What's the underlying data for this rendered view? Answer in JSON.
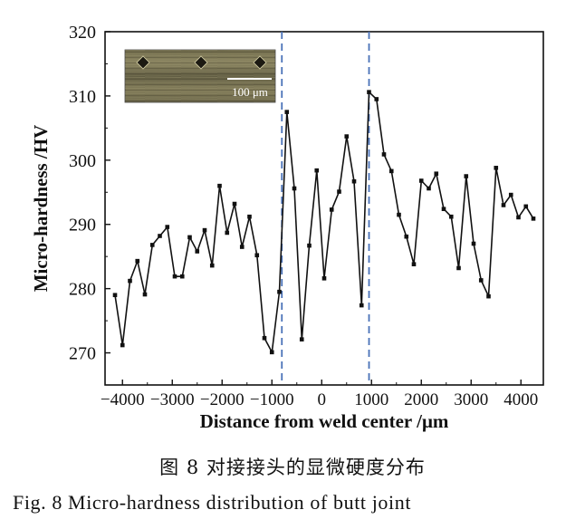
{
  "chart_data": {
    "type": "line",
    "title": "",
    "xlabel": "Distance from weld center /μm",
    "ylabel": "Micro-hardness /HV",
    "xlim": [
      -4350,
      4450
    ],
    "ylim": [
      265,
      320
    ],
    "xticks": [
      -4000,
      -3000,
      -2000,
      -1000,
      0,
      1000,
      2000,
      3000,
      4000
    ],
    "xtick_labels": [
      "−4000",
      "−3000",
      "−2000",
      "−1000",
      "0",
      "1000",
      "2000",
      "3000",
      "4000"
    ],
    "yticks": [
      270,
      280,
      290,
      300,
      310,
      320
    ],
    "ytick_labels": [
      "270",
      "280",
      "290",
      "300",
      "310",
      "320"
    ],
    "grid": false,
    "reference_lines_x": [
      -800,
      950
    ],
    "reference_line_color": "#4a72b8",
    "line_color": "#111111",
    "series": [
      {
        "name": "",
        "x": [
          -4150,
          -4000,
          -3850,
          -3700,
          -3550,
          -3400,
          -3250,
          -3100,
          -2950,
          -2800,
          -2650,
          -2500,
          -2350,
          -2200,
          -2050,
          -1900,
          -1750,
          -1600,
          -1450,
          -1300,
          -1150,
          -1000,
          -850,
          -700,
          -550,
          -400,
          -250,
          -100,
          50,
          200,
          350,
          500,
          650,
          800,
          950,
          1100,
          1250,
          1400,
          1550,
          1700,
          1850,
          2000,
          2150,
          2300,
          2450,
          2600,
          2750,
          2900,
          3050,
          3200,
          3350,
          3500,
          3650,
          3800,
          3950,
          4100,
          4250
        ],
        "y": [
          279,
          271.2,
          281.2,
          284.3,
          279.1,
          286.8,
          288.2,
          289.6,
          281.9,
          281.9,
          288,
          285.8,
          289.1,
          283.6,
          296,
          288.7,
          293.2,
          286.5,
          291.2,
          285.2,
          272.3,
          270.1,
          279.5,
          307.5,
          295.6,
          272.1,
          286.7,
          298.4,
          281.6,
          292.3,
          295.1,
          303.7,
          296.7,
          277.4,
          310.6,
          309.5,
          300.9,
          298.3,
          291.5,
          288.1,
          283.8,
          296.8,
          295.6,
          297.9,
          292.4,
          291.2,
          283.2,
          297.5,
          287,
          281.3,
          278.8,
          298.8,
          293,
          294.6,
          291.1,
          292.8,
          290.9
        ]
      }
    ]
  },
  "inset": {
    "scale_bar_label": "100 μm"
  },
  "caption": {
    "cn": "图 8  对接接头的显微硬度分布",
    "en": "Fig. 8  Micro-hardness distribution of butt joint"
  }
}
